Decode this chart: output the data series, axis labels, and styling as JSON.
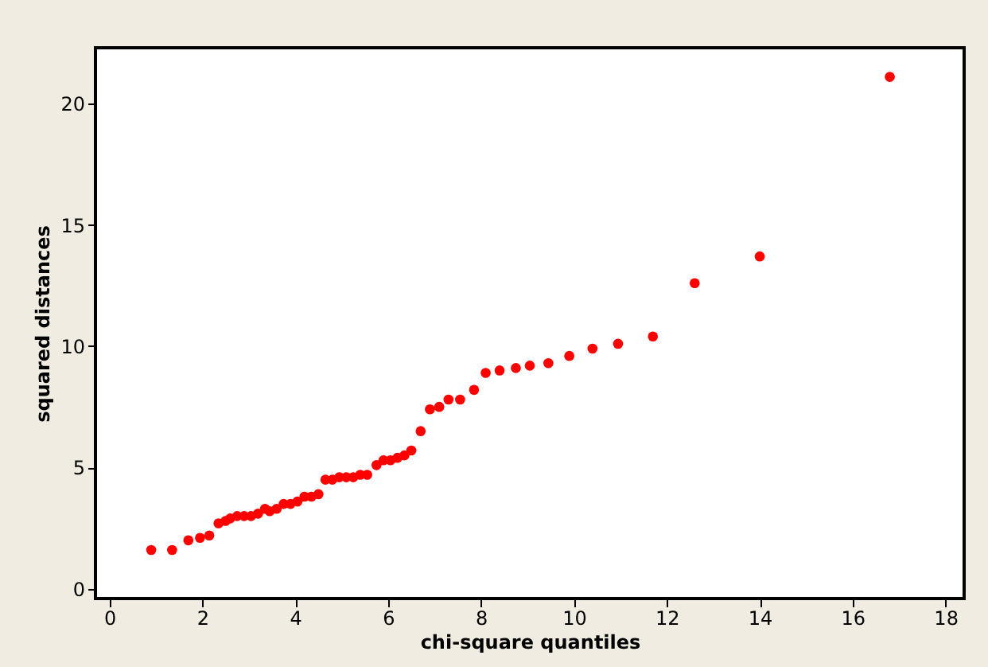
{
  "chart_data": {
    "type": "scatter",
    "xlabel": "chi-square quantiles",
    "ylabel": "squared distances",
    "x": [
      0.9,
      1.35,
      1.7,
      1.95,
      2.15,
      2.35,
      2.5,
      2.6,
      2.75,
      2.9,
      3.05,
      3.2,
      3.35,
      3.45,
      3.6,
      3.75,
      3.9,
      4.05,
      4.2,
      4.35,
      4.5,
      4.65,
      4.8,
      4.95,
      5.1,
      5.25,
      5.4,
      5.55,
      5.75,
      5.9,
      6.05,
      6.2,
      6.35,
      6.5,
      6.7,
      6.9,
      7.1,
      7.3,
      7.55,
      7.85,
      8.1,
      8.4,
      8.75,
      9.05,
      9.45,
      9.9,
      10.4,
      10.95,
      11.7,
      12.6,
      14.0,
      16.8
    ],
    "series": [
      {
        "color": "#ff0000",
        "values": [
          1.6,
          1.6,
          2.0,
          2.1,
          2.2,
          2.7,
          2.8,
          2.9,
          3.0,
          3.0,
          3.0,
          3.1,
          3.3,
          3.2,
          3.3,
          3.5,
          3.5,
          3.6,
          3.8,
          3.8,
          3.9,
          4.5,
          4.5,
          4.6,
          4.6,
          4.6,
          4.7,
          4.7,
          5.1,
          5.3,
          5.3,
          5.4,
          5.5,
          5.7,
          6.5,
          7.4,
          7.5,
          7.8,
          7.8,
          8.2,
          8.9,
          9.0,
          9.1,
          9.2,
          9.3,
          9.6,
          9.9,
          10.1,
          10.4,
          12.6,
          13.7,
          21.1
        ]
      }
    ],
    "xlim": [
      -0.3,
      18.4
    ],
    "ylim": [
      -0.4,
      22.3
    ],
    "xticks": [
      0,
      2,
      4,
      6,
      8,
      10,
      12,
      14,
      16,
      18
    ],
    "yticks": [
      0,
      5,
      10,
      15,
      20
    ],
    "grid": false,
    "marker": "circle"
  }
}
